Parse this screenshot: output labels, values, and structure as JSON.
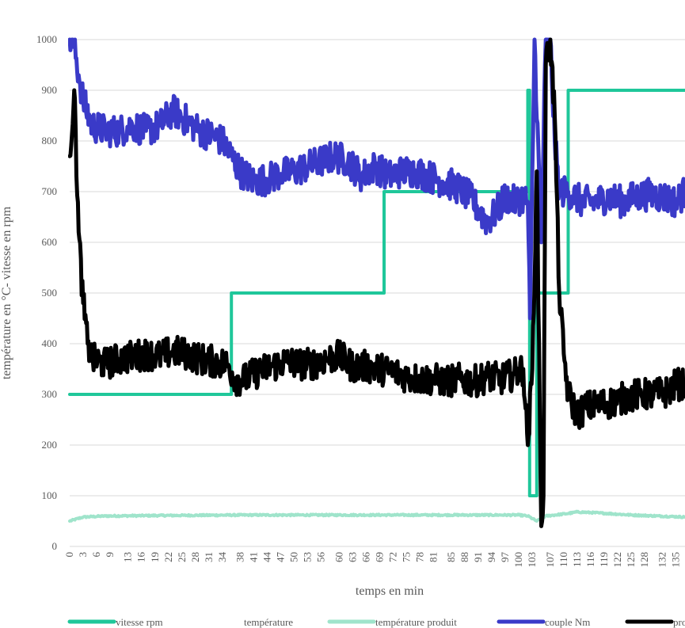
{
  "chart_data": {
    "type": "line",
    "xlabel": "temps en min",
    "ylabel": "température en °C- vitesse en rpm",
    "ylim": [
      0,
      1000
    ],
    "yticks": [
      0,
      100,
      200,
      300,
      400,
      500,
      600,
      700,
      800,
      900,
      1000
    ],
    "xlim": [
      0,
      137
    ],
    "x_tick_labels": [
      "0",
      "3",
      "6",
      "9",
      "13",
      "16",
      "19",
      "22",
      "25",
      "28",
      "31",
      "34",
      "38",
      "41",
      "44",
      "47",
      "50",
      "53",
      "56",
      "60",
      "63",
      "66",
      "69",
      "72",
      "75",
      "78",
      "81",
      "85",
      "88",
      "91",
      "94",
      "97",
      "100",
      "103",
      "107",
      "110",
      "113",
      "116",
      "119",
      "122",
      "125",
      "128",
      "132",
      "135"
    ],
    "grid": true,
    "legend_position": "bottom",
    "series": [
      {
        "name": "vitesse rpm",
        "color": "#1fc79a",
        "points": [
          [
            0,
            300
          ],
          [
            36,
            300
          ],
          [
            36,
            500
          ],
          [
            70,
            500
          ],
          [
            70,
            700
          ],
          [
            102,
            700
          ],
          [
            102,
            900
          ],
          [
            102.4,
            900
          ],
          [
            102.4,
            100
          ],
          [
            104,
            100
          ],
          [
            104,
            500
          ],
          [
            111,
            500
          ],
          [
            111,
            900
          ],
          [
            137,
            900
          ]
        ]
      },
      {
        "name": "température",
        "color": "#9fe4cb",
        "points": []
      },
      {
        "name": "température produit",
        "color": "#9fe4cb",
        "points": [
          [
            0,
            50
          ],
          [
            3,
            58
          ],
          [
            8,
            60
          ],
          [
            20,
            61
          ],
          [
            40,
            62
          ],
          [
            60,
            62
          ],
          [
            80,
            62
          ],
          [
            100,
            62
          ],
          [
            102,
            60
          ],
          [
            104,
            50
          ],
          [
            106,
            60
          ],
          [
            111,
            65
          ],
          [
            113,
            68
          ],
          [
            118,
            66
          ],
          [
            125,
            62
          ],
          [
            137,
            58
          ]
        ]
      },
      {
        "name": "couple Nm",
        "color": "#3a3ac8",
        "points": [
          [
            0,
            1000
          ],
          [
            1,
            990
          ],
          [
            2,
            930
          ],
          [
            3,
            880
          ],
          [
            5,
            830
          ],
          [
            8,
            820
          ],
          [
            11,
            820
          ],
          [
            14,
            830
          ],
          [
            17,
            820
          ],
          [
            20,
            830
          ],
          [
            23,
            860
          ],
          [
            26,
            840
          ],
          [
            29,
            820
          ],
          [
            32,
            810
          ],
          [
            34,
            800
          ],
          [
            36,
            770
          ],
          [
            38,
            740
          ],
          [
            41,
            720
          ],
          [
            44,
            725
          ],
          [
            47,
            735
          ],
          [
            50,
            740
          ],
          [
            53,
            750
          ],
          [
            56,
            760
          ],
          [
            59,
            770
          ],
          [
            62,
            760
          ],
          [
            65,
            730
          ],
          [
            68,
            750
          ],
          [
            71,
            730
          ],
          [
            74,
            740
          ],
          [
            77,
            740
          ],
          [
            80,
            730
          ],
          [
            83,
            720
          ],
          [
            86,
            710
          ],
          [
            89,
            690
          ],
          [
            91,
            665
          ],
          [
            93,
            640
          ],
          [
            95,
            660
          ],
          [
            97,
            690
          ],
          [
            99,
            680
          ],
          [
            101,
            690
          ],
          [
            102,
            680
          ],
          [
            102.5,
            450
          ],
          [
            103.5,
            1000
          ],
          [
            105,
            600
          ],
          [
            106,
            1000
          ],
          [
            107,
            1000
          ],
          [
            108,
            800
          ],
          [
            109,
            700
          ],
          [
            111,
            700
          ],
          [
            114,
            680
          ],
          [
            117,
            680
          ],
          [
            120,
            690
          ],
          [
            123,
            680
          ],
          [
            126,
            690
          ],
          [
            129,
            695
          ],
          [
            132,
            690
          ],
          [
            135,
            680
          ],
          [
            137,
            700
          ]
        ]
      },
      {
        "name": "pro",
        "color": "#000000",
        "points": [
          [
            0,
            770
          ],
          [
            1,
            900
          ],
          [
            2,
            620
          ],
          [
            3,
            480
          ],
          [
            4,
            400
          ],
          [
            5,
            370
          ],
          [
            8,
            360
          ],
          [
            11,
            370
          ],
          [
            14,
            375
          ],
          [
            17,
            380
          ],
          [
            20,
            375
          ],
          [
            23,
            385
          ],
          [
            26,
            380
          ],
          [
            29,
            370
          ],
          [
            32,
            365
          ],
          [
            35,
            360
          ],
          [
            37,
            330
          ],
          [
            39,
            330
          ],
          [
            42,
            345
          ],
          [
            45,
            355
          ],
          [
            48,
            365
          ],
          [
            51,
            360
          ],
          [
            54,
            360
          ],
          [
            57,
            370
          ],
          [
            60,
            375
          ],
          [
            63,
            355
          ],
          [
            66,
            355
          ],
          [
            69,
            350
          ],
          [
            72,
            345
          ],
          [
            75,
            335
          ],
          [
            78,
            330
          ],
          [
            81,
            330
          ],
          [
            84,
            325
          ],
          [
            87,
            330
          ],
          [
            90,
            325
          ],
          [
            93,
            335
          ],
          [
            96,
            330
          ],
          [
            99,
            340
          ],
          [
            101,
            350
          ],
          [
            102,
            200
          ],
          [
            103,
            350
          ],
          [
            104,
            740
          ],
          [
            105,
            40
          ],
          [
            105.5,
            100
          ],
          [
            106,
            950
          ],
          [
            107,
            1000
          ],
          [
            108,
            850
          ],
          [
            109,
            500
          ],
          [
            110,
            380
          ],
          [
            111,
            300
          ],
          [
            113,
            260
          ],
          [
            115,
            275
          ],
          [
            118,
            280
          ],
          [
            121,
            285
          ],
          [
            124,
            295
          ],
          [
            127,
            300
          ],
          [
            130,
            300
          ],
          [
            133,
            305
          ],
          [
            135,
            320
          ],
          [
            137,
            320
          ]
        ]
      }
    ]
  }
}
